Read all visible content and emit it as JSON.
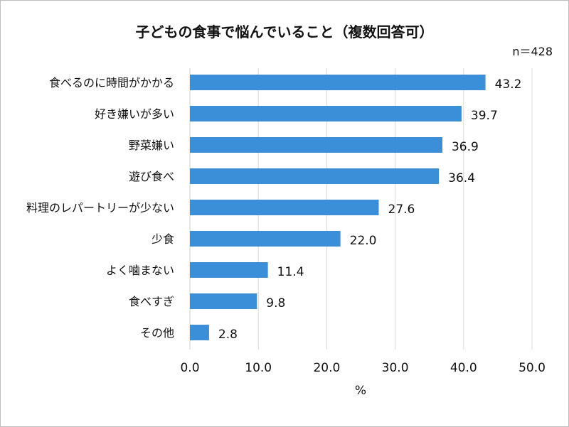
{
  "chart_data": {
    "type": "bar",
    "orientation": "horizontal",
    "title": "子どもの食事で悩んでいること（複数回答可）",
    "note": "n＝428",
    "categories": [
      "食べるのに時間がかかる",
      "好き嫌いが多い",
      "野菜嫌い",
      "遊び食べ",
      "料理のレパートリーが少ない",
      "少食",
      "よく噛まない",
      "食べすぎ",
      "その他"
    ],
    "values": [
      43.2,
      39.7,
      36.9,
      36.4,
      27.6,
      22.0,
      11.4,
      9.8,
      2.8
    ],
    "value_labels": [
      "43.2",
      "39.7",
      "36.9",
      "36.4",
      "27.6",
      "22.0",
      "11.4",
      "9.8",
      "2.8"
    ],
    "xlim": [
      0,
      50
    ],
    "x_ticks": [
      0,
      10,
      20,
      30,
      40,
      50
    ],
    "x_tick_labels": [
      "0.0",
      "10.0",
      "20.0",
      "30.0",
      "40.0",
      "50.0"
    ],
    "xlabel": "%",
    "ylabel": "",
    "grid": true,
    "bar_color": "#3a8fd8",
    "grid_color": "#d9d9d9"
  }
}
